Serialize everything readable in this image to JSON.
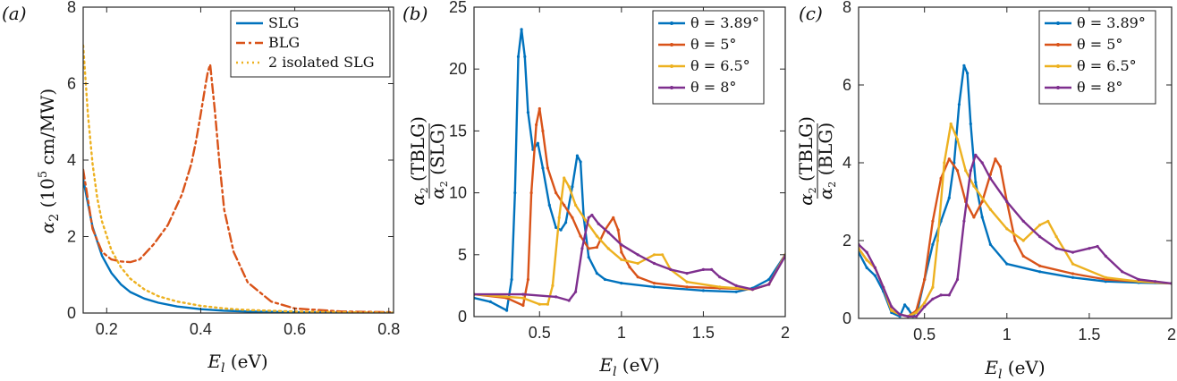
{
  "colors": {
    "blue": "#0072BD",
    "orange": "#D95319",
    "yellow": "#EDB120",
    "purple": "#7E2F8E"
  },
  "chart_data": [
    {
      "type": "line",
      "panel_label": "(a)",
      "xlabel": "E_l (eV)",
      "ylabel": "α2 (10^5 cm/MW)",
      "xlim": [
        0.15,
        0.81
      ],
      "ylim": [
        0,
        8
      ],
      "xticks": [
        0.2,
        0.4,
        0.6,
        0.8
      ],
      "xtick_labels": [
        "0.2",
        "0.4",
        "0.6",
        "0.8"
      ],
      "yticks": [
        0,
        2,
        4,
        6,
        8
      ],
      "ytick_labels": [
        "0",
        "2",
        "4",
        "6",
        "8"
      ],
      "legend_position": "top-right",
      "series": [
        {
          "name": "SLG",
          "color": "#0072BD",
          "style": "solid",
          "x": [
            0.15,
            0.17,
            0.19,
            0.21,
            0.23,
            0.25,
            0.28,
            0.31,
            0.35,
            0.4,
            0.45,
            0.5,
            0.6,
            0.7,
            0.81
          ],
          "y": [
            3.5,
            2.25,
            1.5,
            1.05,
            0.75,
            0.55,
            0.38,
            0.27,
            0.17,
            0.1,
            0.06,
            0.04,
            0.02,
            0.01,
            0.005
          ]
        },
        {
          "name": "BLG",
          "color": "#D95319",
          "style": "dashdot",
          "x": [
            0.15,
            0.17,
            0.19,
            0.21,
            0.23,
            0.25,
            0.27,
            0.3,
            0.33,
            0.36,
            0.38,
            0.39,
            0.4,
            0.41,
            0.415,
            0.42,
            0.43,
            0.44,
            0.45,
            0.47,
            0.5,
            0.55,
            0.6,
            0.7,
            0.81
          ],
          "y": [
            3.75,
            2.2,
            1.6,
            1.4,
            1.35,
            1.33,
            1.4,
            1.8,
            2.3,
            3.1,
            3.9,
            4.5,
            5.2,
            5.95,
            6.3,
            6.5,
            5.3,
            3.9,
            2.7,
            1.6,
            0.8,
            0.3,
            0.12,
            0.04,
            0.02
          ]
        },
        {
          "name": "2 isolated SLG",
          "color": "#EDB120",
          "style": "dotted",
          "x": [
            0.15,
            0.16,
            0.17,
            0.18,
            0.19,
            0.21,
            0.23,
            0.25,
            0.28,
            0.31,
            0.35,
            0.4,
            0.45,
            0.5,
            0.6,
            0.7,
            0.81
          ],
          "y": [
            7.0,
            5.2,
            3.9,
            3.0,
            2.4,
            1.65,
            1.2,
            0.9,
            0.62,
            0.44,
            0.3,
            0.19,
            0.12,
            0.08,
            0.04,
            0.02,
            0.01
          ]
        }
      ]
    },
    {
      "type": "line",
      "panel_label": "(b)",
      "xlabel": "E_l (eV)",
      "ylabel_num": "α2 (TBLG)",
      "ylabel_den": "α2 (SLG)",
      "xlim": [
        0.1,
        2.0
      ],
      "ylim": [
        0,
        25
      ],
      "xticks": [
        0.5,
        1,
        1.5,
        2
      ],
      "xtick_labels": [
        "0.5",
        "1",
        "1.5",
        "2"
      ],
      "yticks": [
        0,
        5,
        10,
        15,
        20,
        25
      ],
      "ytick_labels": [
        "0",
        "5",
        "10",
        "15",
        "20",
        "25"
      ],
      "legend_position": "top-right",
      "series": [
        {
          "name": "θ = 3.89°",
          "color": "#0072BD",
          "x": [
            0.1,
            0.2,
            0.3,
            0.33,
            0.35,
            0.37,
            0.39,
            0.41,
            0.43,
            0.46,
            0.49,
            0.52,
            0.56,
            0.6,
            0.63,
            0.66,
            0.7,
            0.73,
            0.75,
            0.77,
            0.8,
            0.85,
            0.9,
            1.0,
            1.2,
            1.5,
            1.7,
            1.8,
            1.9,
            2.0
          ],
          "y": [
            1.5,
            1.2,
            0.5,
            3.0,
            10.0,
            21.0,
            23.2,
            21.0,
            16.5,
            13.5,
            14.0,
            12.0,
            9.0,
            7.2,
            7.0,
            7.6,
            10.5,
            13.0,
            12.5,
            8.0,
            4.8,
            3.5,
            3.0,
            2.7,
            2.4,
            2.1,
            2.0,
            2.3,
            3.0,
            5.0
          ]
        },
        {
          "name": "θ = 5°",
          "color": "#D95319",
          "x": [
            0.1,
            0.3,
            0.4,
            0.43,
            0.45,
            0.48,
            0.5,
            0.52,
            0.55,
            0.6,
            0.65,
            0.7,
            0.75,
            0.8,
            0.85,
            0.9,
            0.95,
            0.98,
            1.0,
            1.05,
            1.1,
            1.2,
            1.4,
            1.6,
            1.8,
            1.9,
            2.0
          ],
          "y": [
            1.8,
            1.5,
            0.9,
            3.0,
            10.0,
            15.5,
            16.8,
            15.0,
            12.0,
            10.0,
            9.0,
            8.0,
            6.5,
            5.5,
            5.6,
            7.0,
            8.0,
            7.0,
            5.2,
            4.0,
            3.2,
            2.7,
            2.4,
            2.3,
            2.2,
            2.6,
            5.0
          ]
        },
        {
          "name": "θ = 6.5°",
          "color": "#EDB120",
          "x": [
            0.1,
            0.4,
            0.5,
            0.55,
            0.58,
            0.62,
            0.65,
            0.68,
            0.72,
            0.78,
            0.85,
            0.92,
            1.0,
            1.1,
            1.2,
            1.25,
            1.3,
            1.4,
            1.6,
            1.8,
            1.9,
            2.0
          ],
          "y": [
            1.8,
            1.5,
            1.0,
            1.0,
            2.5,
            8.0,
            11.2,
            10.5,
            9.0,
            7.8,
            6.5,
            5.5,
            4.6,
            4.3,
            5.0,
            5.0,
            3.8,
            2.8,
            2.4,
            2.2,
            2.6,
            5.0
          ]
        },
        {
          "name": "θ = 8°",
          "color": "#7E2F8E",
          "x": [
            0.1,
            0.4,
            0.6,
            0.68,
            0.72,
            0.76,
            0.8,
            0.82,
            0.86,
            0.92,
            1.0,
            1.1,
            1.2,
            1.3,
            1.4,
            1.5,
            1.55,
            1.6,
            1.7,
            1.8,
            1.9,
            2.0
          ],
          "y": [
            1.8,
            1.8,
            1.6,
            1.3,
            2.0,
            5.5,
            8.0,
            8.2,
            7.5,
            6.8,
            5.8,
            5.0,
            4.3,
            3.8,
            3.5,
            3.8,
            3.8,
            3.2,
            2.5,
            2.2,
            2.6,
            4.9
          ]
        }
      ]
    },
    {
      "type": "line",
      "panel_label": "(c)",
      "xlabel": "E_l (eV)",
      "ylabel_num": "α2 (TBLG)",
      "ylabel_den": "α2 (BLG)",
      "xlim": [
        0.1,
        2.0
      ],
      "ylim": [
        0,
        8
      ],
      "xticks": [
        0.5,
        1,
        1.5,
        2
      ],
      "xtick_labels": [
        "0.5",
        "1",
        "1.5",
        "2"
      ],
      "yticks": [
        0,
        2,
        4,
        6,
        8
      ],
      "ytick_labels": [
        "0",
        "2",
        "4",
        "6",
        "8"
      ],
      "legend_position": "top-right",
      "series": [
        {
          "name": "θ = 3.89°",
          "color": "#0072BD",
          "x": [
            0.1,
            0.15,
            0.2,
            0.25,
            0.3,
            0.35,
            0.38,
            0.4,
            0.43,
            0.46,
            0.5,
            0.55,
            0.6,
            0.65,
            0.68,
            0.71,
            0.74,
            0.76,
            0.78,
            0.81,
            0.85,
            0.9,
            1.0,
            1.2,
            1.4,
            1.6,
            1.8,
            2.0
          ],
          "y": [
            1.7,
            1.3,
            1.1,
            0.7,
            0.15,
            0.05,
            0.35,
            0.25,
            0.05,
            0.25,
            1.0,
            1.9,
            2.5,
            3.1,
            4.0,
            5.5,
            6.5,
            6.3,
            5.0,
            3.5,
            2.6,
            1.9,
            1.4,
            1.2,
            1.05,
            0.95,
            0.92,
            0.9
          ]
        },
        {
          "name": "θ = 5°",
          "color": "#D95319",
          "x": [
            0.1,
            0.15,
            0.2,
            0.25,
            0.3,
            0.35,
            0.4,
            0.45,
            0.5,
            0.55,
            0.6,
            0.65,
            0.7,
            0.75,
            0.8,
            0.85,
            0.9,
            0.93,
            0.96,
            1.0,
            1.05,
            1.1,
            1.2,
            1.4,
            1.6,
            1.8,
            2.0
          ],
          "y": [
            1.8,
            1.5,
            1.3,
            0.8,
            0.2,
            0.1,
            0.05,
            0.2,
            1.0,
            2.5,
            3.6,
            4.1,
            3.8,
            3.0,
            2.6,
            3.0,
            3.7,
            4.1,
            3.9,
            3.0,
            2.0,
            1.6,
            1.35,
            1.15,
            1.0,
            0.95,
            0.9
          ]
        },
        {
          "name": "θ = 6.5°",
          "color": "#EDB120",
          "x": [
            0.1,
            0.15,
            0.2,
            0.25,
            0.3,
            0.35,
            0.4,
            0.45,
            0.5,
            0.55,
            0.58,
            0.62,
            0.66,
            0.7,
            0.75,
            0.8,
            0.9,
            1.0,
            1.1,
            1.2,
            1.25,
            1.3,
            1.4,
            1.6,
            1.8,
            2.0
          ],
          "y": [
            1.8,
            1.5,
            1.3,
            0.8,
            0.2,
            0.1,
            0.05,
            0.15,
            0.4,
            0.8,
            2.0,
            4.0,
            5.0,
            4.6,
            3.8,
            3.4,
            2.8,
            2.3,
            2.0,
            2.4,
            2.5,
            2.1,
            1.4,
            1.05,
            0.95,
            0.9
          ]
        },
        {
          "name": "θ = 8°",
          "color": "#7E2F8E",
          "x": [
            0.1,
            0.15,
            0.2,
            0.25,
            0.3,
            0.35,
            0.4,
            0.45,
            0.5,
            0.55,
            0.6,
            0.65,
            0.7,
            0.74,
            0.78,
            0.81,
            0.85,
            0.9,
            1.0,
            1.1,
            1.2,
            1.3,
            1.4,
            1.5,
            1.55,
            1.6,
            1.7,
            1.8,
            1.9,
            2.0
          ],
          "y": [
            1.9,
            1.7,
            1.3,
            0.8,
            0.3,
            0.1,
            0.05,
            0.05,
            0.3,
            0.5,
            0.6,
            0.6,
            1.0,
            2.5,
            3.8,
            4.2,
            4.0,
            3.6,
            3.0,
            2.5,
            2.1,
            1.8,
            1.7,
            1.8,
            1.85,
            1.6,
            1.2,
            1.0,
            0.95,
            0.9
          ]
        }
      ]
    }
  ]
}
